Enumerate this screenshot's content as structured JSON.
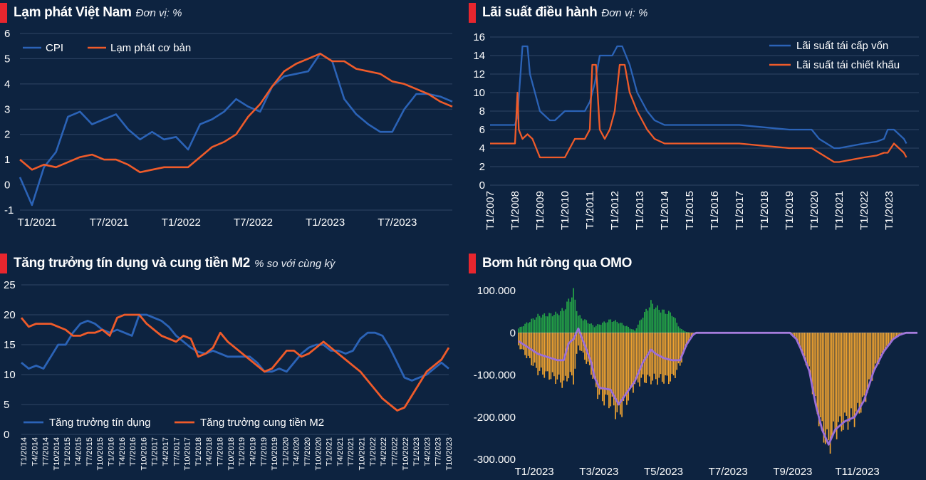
{
  "colors": {
    "background": "#0d2340",
    "title_marker": "#e8262e",
    "blue": "#2b63b7",
    "orange": "#ef5b2a",
    "omo_green": "#24a346",
    "omo_orange": "#f0a330",
    "omo_purple": "#9b6fd8",
    "grid": "#2f4564"
  },
  "panels": {
    "inflation": {
      "title": "Lạm phát Việt Nam",
      "unit": "Đơn vị: %"
    },
    "policy_rate": {
      "title": "Lãi suất điều hành",
      "unit": "Đơn vị: %"
    },
    "credit": {
      "title": "Tăng trưởng tín dụng và cung tiền M2",
      "unit": "% so với cùng kỳ"
    },
    "omo": {
      "title": "Bơm hút ròng qua OMO",
      "unit": ""
    }
  },
  "chart_data": [
    {
      "id": "inflation",
      "type": "line",
      "ylim": [
        -1,
        6
      ],
      "yticks": [
        -1,
        0,
        1,
        2,
        3,
        4,
        5,
        6
      ],
      "xtick_labels": [
        "T1/2021",
        "T7/2021",
        "T1/2022",
        "T7/2022",
        "T1/2023",
        "T7/2023"
      ],
      "xtick_index": [
        0,
        6,
        12,
        18,
        24,
        30
      ],
      "legend": "top-left",
      "series": [
        {
          "name": "CPI",
          "color": "#2b63b7",
          "values": [
            0.3,
            -0.8,
            0.7,
            1.3,
            2.7,
            2.9,
            2.4,
            2.6,
            2.8,
            2.2,
            1.8,
            2.1,
            1.8,
            1.9,
            1.4,
            2.4,
            2.6,
            2.9,
            3.4,
            3.1,
            2.9,
            3.9,
            4.3,
            4.4,
            4.5,
            5.2,
            4.9,
            3.4,
            2.8,
            2.4,
            2.1,
            2.1,
            3.0,
            3.6,
            3.6,
            3.5,
            3.3
          ]
        },
        {
          "name": "Lạm phát cơ bản",
          "color": "#ef5b2a",
          "values": [
            1.0,
            0.6,
            0.8,
            0.7,
            0.9,
            1.1,
            1.2,
            1.0,
            1.0,
            0.8,
            0.5,
            0.6,
            0.7,
            0.7,
            0.7,
            1.1,
            1.5,
            1.7,
            2.0,
            2.7,
            3.2,
            3.9,
            4.5,
            4.8,
            5.0,
            5.2,
            4.9,
            4.9,
            4.6,
            4.5,
            4.4,
            4.1,
            4.0,
            3.8,
            3.6,
            3.3,
            3.1
          ]
        }
      ]
    },
    {
      "id": "policy_rate",
      "type": "line",
      "ylim": [
        0,
        16
      ],
      "yticks": [
        0,
        2,
        4,
        6,
        8,
        10,
        12,
        14,
        16
      ],
      "xlim": [
        2007,
        2024.2
      ],
      "xtick_labels": [
        "T1/2007",
        "T1/2008",
        "T1/2009",
        "T1/2010",
        "T1/2011",
        "T1/2012",
        "T1/2013",
        "T1/2014",
        "T1/2015",
        "T1/2016",
        "T1/2017",
        "T1/2018",
        "T1/2019",
        "T1/2020",
        "T1/2021",
        "T1/2022",
        "T1/2023"
      ],
      "xtick_values": [
        2007,
        2008,
        2009,
        2010,
        2011,
        2012,
        2013,
        2014,
        2015,
        2016,
        2017,
        2018,
        2019,
        2020,
        2021,
        2022,
        2023
      ],
      "legend": "top-right",
      "series": [
        {
          "name": "Lãi suất tái cấp vốn",
          "color": "#2b63b7",
          "x": [
            2007.0,
            2008.0,
            2008.1,
            2008.3,
            2008.5,
            2008.6,
            2008.8,
            2009.0,
            2009.4,
            2009.6,
            2010.0,
            2010.4,
            2010.8,
            2011.0,
            2011.2,
            2011.4,
            2011.6,
            2011.9,
            2012.1,
            2012.3,
            2012.6,
            2012.9,
            2013.1,
            2013.3,
            2013.6,
            2014.0,
            2016.0,
            2017.0,
            2018.0,
            2019.0,
            2019.5,
            2019.9,
            2020.2,
            2020.5,
            2020.8,
            2021.0,
            2022.0,
            2022.5,
            2022.8,
            2022.95,
            2023.2,
            2023.4,
            2023.6,
            2023.7
          ],
          "values": [
            6.5,
            6.5,
            7.5,
            15.0,
            15.0,
            12.0,
            10.0,
            8.0,
            7.0,
            7.0,
            8.0,
            8.0,
            8.0,
            9.0,
            11.0,
            14.0,
            14.0,
            14.0,
            15.0,
            15.0,
            13.0,
            10.0,
            9.0,
            8.0,
            7.0,
            6.5,
            6.5,
            6.5,
            6.25,
            6.0,
            6.0,
            6.0,
            5.0,
            4.5,
            4.0,
            4.0,
            4.5,
            4.7,
            5.0,
            6.0,
            6.0,
            5.5,
            5.0,
            4.5
          ]
        },
        {
          "name": "Lãi suất tái chiết khấu",
          "color": "#ef5b2a",
          "x": [
            2007.0,
            2008.0,
            2008.1,
            2008.15,
            2008.3,
            2008.5,
            2008.7,
            2009.0,
            2009.4,
            2009.7,
            2010.0,
            2010.4,
            2010.8,
            2011.0,
            2011.1,
            2011.25,
            2011.4,
            2011.6,
            2011.8,
            2012.0,
            2012.2,
            2012.4,
            2012.6,
            2012.9,
            2013.1,
            2013.3,
            2013.6,
            2014.0,
            2016.0,
            2017.0,
            2018.0,
            2019.0,
            2019.5,
            2019.9,
            2020.2,
            2020.5,
            2020.8,
            2021.0,
            2022.0,
            2022.5,
            2022.8,
            2022.95,
            2023.2,
            2023.4,
            2023.6,
            2023.7
          ],
          "values": [
            4.5,
            4.5,
            10.0,
            6.0,
            5.0,
            5.5,
            5.0,
            3.0,
            3.0,
            3.0,
            3.0,
            5.0,
            5.0,
            6.0,
            13.0,
            13.0,
            6.0,
            5.0,
            6.0,
            8.0,
            13.0,
            13.0,
            10.0,
            8.0,
            7.0,
            6.0,
            5.0,
            4.5,
            4.5,
            4.5,
            4.25,
            4.0,
            4.0,
            4.0,
            3.5,
            3.0,
            2.5,
            2.5,
            3.0,
            3.2,
            3.5,
            3.5,
            4.5,
            4.0,
            3.5,
            3.0
          ]
        }
      ]
    },
    {
      "id": "credit",
      "type": "line",
      "ylim": [
        0,
        25
      ],
      "yticks": [
        0,
        5,
        10,
        15,
        20,
        25
      ],
      "xtick_labels": [
        "T1/2014",
        "T4/2014",
        "T7/2014",
        "T10/2014",
        "T1/2015",
        "T4/2015",
        "T7/2015",
        "T10/2015",
        "T1/2016",
        "T4/2016",
        "T7/2016",
        "T10/2016",
        "T1/2017",
        "T4/2017",
        "T7/2017",
        "T10/2017",
        "T1/2018",
        "T4/2018",
        "T7/2018",
        "T10/2018",
        "T1/2019",
        "T4/2019",
        "T7/2019",
        "T10/2019",
        "T1/2020",
        "T4/2020",
        "T7/2020",
        "T10/2020",
        "T1/2021",
        "T4/2021",
        "T7/2021",
        "T10/2021",
        "T1/2022",
        "T4/2022",
        "T7/2022",
        "T10/2022",
        "T1/2023",
        "T4/2023",
        "T7/2023",
        "T10/2023"
      ],
      "legend": "bottom-left",
      "series": [
        {
          "name": "Tăng trưởng tín dụng",
          "color": "#2b63b7",
          "values": [
            12.0,
            11.0,
            11.5,
            11.0,
            13.0,
            15.0,
            15.0,
            17.0,
            18.5,
            19.0,
            18.5,
            17.5,
            17.0,
            17.5,
            17.0,
            16.5,
            20.0,
            20.0,
            19.5,
            19.0,
            18.0,
            16.5,
            15.5,
            14.5,
            13.8,
            13.5,
            14.0,
            13.5,
            13.0,
            13.0,
            13.0,
            13.0,
            12.0,
            10.5,
            10.5,
            11.0,
            10.5,
            12.0,
            13.5,
            14.5,
            15.0,
            15.0,
            14.0,
            14.0,
            13.5,
            14.0,
            16.0,
            17.0,
            17.0,
            16.5,
            14.5,
            12.0,
            9.5,
            9.0,
            9.5,
            10.0,
            11.0,
            12.0,
            11.0
          ]
        },
        {
          "name": "Tăng trưởng cung tiền M2",
          "color": "#ef5b2a",
          "values": [
            19.5,
            18.0,
            18.5,
            18.5,
            18.5,
            18.0,
            17.5,
            16.5,
            16.5,
            17.0,
            17.0,
            17.5,
            16.5,
            19.5,
            20.0,
            20.0,
            20.0,
            18.5,
            17.5,
            16.5,
            16.0,
            15.5,
            16.5,
            16.0,
            13.0,
            13.5,
            14.5,
            17.0,
            15.5,
            14.5,
            13.5,
            12.5,
            11.5,
            10.5,
            11.0,
            12.5,
            14.0,
            14.0,
            13.0,
            13.5,
            14.5,
            15.5,
            14.5,
            13.5,
            12.5,
            11.5,
            10.5,
            9.0,
            7.5,
            6.0,
            5.0,
            4.0,
            4.5,
            6.5,
            8.5,
            10.5,
            11.5,
            12.5,
            14.5
          ]
        }
      ]
    },
    {
      "id": "omo",
      "type": "bar",
      "ylim": [
        -300000,
        100000
      ],
      "yticks": [
        -300000,
        -200000,
        -100000,
        0,
        100000
      ],
      "ytick_labels": [
        "-300.000",
        "-200.000",
        "-100.000",
        "0",
        "100.000"
      ],
      "xtick_labels": [
        "T1/2023",
        "T3/2023",
        "T5/2023",
        "T7/2023",
        "T9/2023",
        "T11/2023"
      ],
      "xtick_index": [
        8,
        48,
        88,
        128,
        168,
        208
      ],
      "bar_colors": {
        "positive": "#24a346",
        "negative": "#f0a330",
        "net_line": "#9b6fd8"
      },
      "bars": {
        "index": [
          0,
          12,
          24,
          28,
          31,
          34,
          37,
          45,
          47,
          50,
          57,
          62,
          72,
          77,
          82,
          85,
          90,
          95,
          100,
          104,
          108,
          110,
          115,
          120,
          125,
          130,
          160,
          168,
          172,
          175,
          180,
          184,
          188,
          192,
          196,
          202,
          208,
          214,
          220,
          226,
          232,
          236,
          240,
          243
        ],
        "positive": [
          10000,
          40000,
          45000,
          55000,
          75000,
          95000,
          40000,
          20000,
          15000,
          20000,
          30000,
          25000,
          5000,
          40000,
          70000,
          60000,
          50000,
          45000,
          10000,
          2000,
          0,
          0,
          0,
          0,
          0,
          0,
          0,
          0,
          0,
          0,
          0,
          0,
          0,
          0,
          0,
          0,
          0,
          0,
          0,
          0,
          0,
          0,
          0,
          0
        ],
        "negative": [
          -30000,
          -90000,
          -110000,
          -120000,
          -100000,
          -110000,
          -30000,
          -90000,
          -120000,
          -150000,
          -165000,
          -195000,
          -120000,
          -110000,
          -110000,
          -110000,
          -110000,
          -110000,
          -75000,
          -30000,
          -5000,
          0,
          0,
          0,
          0,
          0,
          0,
          0,
          -15000,
          -40000,
          -90000,
          -170000,
          -230000,
          -265000,
          -230000,
          -210000,
          -200000,
          -160000,
          -90000,
          -45000,
          -15000,
          -5000,
          0,
          0
        ]
      }
    }
  ]
}
